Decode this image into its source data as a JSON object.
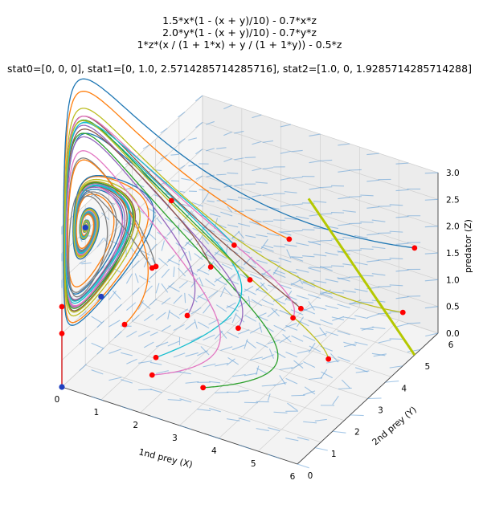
{
  "chart_data": {
    "type": "3d-phase-portrait",
    "title_lines": [
      "1.5*x*(1 - (x + y)/10) - 0.7*x*z",
      "2.0*y*(1 - (x + y)/10) - 0.7*y*z",
      "1*z*(x / (1 + 1*x) + y / (1 + 1*y)) - 0.5*z"
    ],
    "stationary_label": "stat0=[0, 0, 0], stat1=[0, 1.0, 2.5714285714285716], stat2=[1.0, 0, 1.9285714285714288]",
    "stationary_points": [
      {
        "name": "stat0",
        "x": 0,
        "y": 0,
        "z": 0
      },
      {
        "name": "stat1",
        "x": 0,
        "y": 1.0,
        "z": 2.5714285714285716
      },
      {
        "name": "stat2",
        "x": 1.0,
        "y": 0,
        "z": 1.9285714285714288
      }
    ],
    "xlabel": "1nd prey (X)",
    "ylabel": "2nd prey (Y)",
    "zlabel": "predator (Z)",
    "xlim": [
      0,
      6
    ],
    "ylim": [
      0,
      6
    ],
    "zlim": [
      0,
      3
    ],
    "xticks": [
      "0",
      "1",
      "2",
      "3",
      "4",
      "5",
      "6"
    ],
    "yticks": [
      "0",
      "1",
      "2",
      "3",
      "4",
      "5",
      "6"
    ],
    "zticks": [
      "0.0",
      "0.5",
      "1.0",
      "1.5",
      "2.0",
      "2.5",
      "3.0"
    ],
    "vector_field_color": "#5b9bd5",
    "start_point_color": "#ff0000",
    "stationary_point_color": "#1f3fbf",
    "line_of_equilibria_color": "#b5c800",
    "line_of_equilibria": [
      {
        "x": 3.0,
        "y": 5.5,
        "z": 2.0
      },
      {
        "x": 6.0,
        "y": 5.0,
        "z": 0.0
      }
    ],
    "trajectory_colors": [
      "#1f77b4",
      "#ff7f0e",
      "#2ca02c",
      "#d62728",
      "#9467bd",
      "#8c564b",
      "#e377c2",
      "#7f7f7f",
      "#17becf",
      "#bcbd22"
    ],
    "initial_points": [
      {
        "x": 1.0,
        "y": 3.0,
        "z": 2.5
      },
      {
        "x": 4.0,
        "y": 3.0,
        "z": 2.5
      },
      {
        "x": 3.0,
        "y": 1.0,
        "z": 0.3
      },
      {
        "x": 0.0,
        "y": 0.0,
        "z": 1.0
      },
      {
        "x": 3.0,
        "y": 2.5,
        "z": 0.8
      },
      {
        "x": 4.0,
        "y": 3.5,
        "z": 1.0
      },
      {
        "x": 3.5,
        "y": 4.0,
        "z": 0.5
      },
      {
        "x": 1.5,
        "y": 1.5,
        "z": 2.0
      },
      {
        "x": 1.5,
        "y": 1.5,
        "z": 0.3
      },
      {
        "x": 6.0,
        "y": 4.5,
        "z": 1.0
      },
      {
        "x": 6.0,
        "y": 5.0,
        "z": 2.0
      },
      {
        "x": 1.0,
        "y": 1.0,
        "z": 1.0
      },
      {
        "x": 3.0,
        "y": 3.0,
        "z": 1.5
      },
      {
        "x": 0.0,
        "y": 0.0,
        "z": 1.5
      },
      {
        "x": 2.0,
        "y": 2.0,
        "z": 1.0
      },
      {
        "x": 2.0,
        "y": 3.0,
        "z": 1.5
      },
      {
        "x": 2.0,
        "y": 0.5,
        "z": 0.5
      },
      {
        "x": 2.0,
        "y": 0.5,
        "z": 2.5
      },
      {
        "x": 2.0,
        "y": 4.0,
        "z": 1.5
      },
      {
        "x": 5.0,
        "y": 3.0,
        "z": 0.5
      }
    ],
    "grid": true
  }
}
